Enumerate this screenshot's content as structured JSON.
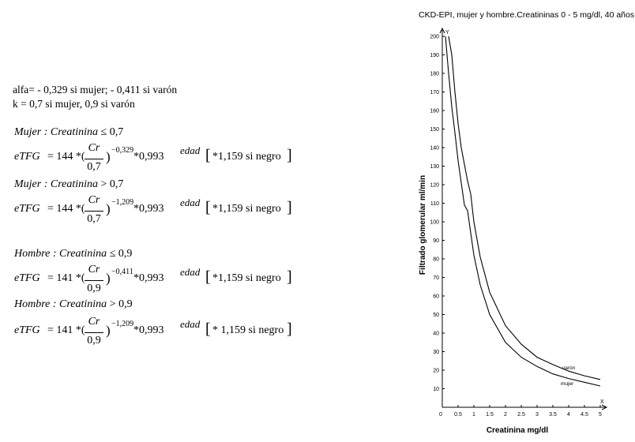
{
  "definitions": {
    "alfa": "alfa= - 0,329 si mujer; - 0,411 si varón",
    "k": "k = 0,7 si mujer, 0,9 si varón"
  },
  "formulas": [
    {
      "condition_label": "Mujer : Creatinina ",
      "condition_op": "≤ 0,7",
      "lhs": "eTFG",
      "eq_prefix": "= 144 *(",
      "numerator": "Cr",
      "denominator": "0,7",
      "close": ")",
      "exponent": "−0,329",
      "factor": "*0,993",
      "age_exp": "edad",
      "bracket_open": "[",
      "race_term": "*1,159  si negro",
      "bracket_close": "]"
    },
    {
      "condition_label": "Mujer : Creatinina ",
      "condition_op": "> 0,7",
      "lhs": "eTFG",
      "eq_prefix": "= 144 *(",
      "numerator": "Cr",
      "denominator": "0,7",
      "close": ")",
      "exponent": "−1,209",
      "factor": "*0,993",
      "age_exp": "edad",
      "bracket_open": "[",
      "race_term": "*1,159  si negro",
      "bracket_close": "]"
    },
    {
      "condition_label": "Hombre : Creatinina ",
      "condition_op": "≤ 0,9",
      "lhs": "eTFG",
      "eq_prefix": "= 141 *(",
      "numerator": "Cr",
      "denominator": "0,9",
      "close": ")",
      "exponent": "−0,411",
      "factor": "*0,993",
      "age_exp": "edad",
      "bracket_open": "[",
      "race_term": "*1,159  si negro",
      "bracket_close": "]"
    },
    {
      "condition_label": "Hombre : Creatinina ",
      "condition_op": "> 0,9",
      "lhs": "eTFG",
      "eq_prefix": "= 141 *(",
      "numerator": "Cr",
      "denominator": "0,9",
      "close": ")",
      "exponent": "−1,209",
      "factor": "*0,993",
      "age_exp": "edad",
      "bracket_open": "[",
      "race_term": "* 1,159  si negro",
      "bracket_close": "]"
    }
  ],
  "chart_data": {
    "type": "line",
    "title": "CKD-EPI, mujer y hombre.Creatininas 0 - 5 mg/dl, 40 años",
    "xlabel": "Creatinina mg/dl",
    "ylabel": "Filtrado glomerular ml/min",
    "x_axis_letter": "X",
    "y_axis_letter": "Y",
    "origin_label": "0",
    "xlim": [
      0,
      5
    ],
    "ylim": [
      0,
      200
    ],
    "x_ticks": [
      0.5,
      1,
      1.5,
      2,
      2.5,
      3,
      3.5,
      4,
      4.5,
      5
    ],
    "x_tick_labels": [
      "0.5",
      "1",
      "1.5",
      "2",
      "2.5",
      "3",
      "3.5",
      "4",
      "4.5",
      "5"
    ],
    "y_ticks": [
      10,
      20,
      30,
      40,
      50,
      60,
      70,
      80,
      90,
      100,
      110,
      120,
      130,
      140,
      150,
      160,
      170,
      180,
      190,
      200
    ],
    "y_tick_labels": [
      "10",
      "20",
      "30",
      "40",
      "50",
      "60",
      "70",
      "80",
      "90",
      "100",
      "110",
      "120",
      "130",
      "140",
      "150",
      "160",
      "170",
      "180",
      "190",
      "200"
    ],
    "grid": false,
    "legend": "inline labels near curve ends",
    "series": [
      {
        "name": "varón",
        "points": [
          [
            0.2,
            200
          ],
          [
            0.3,
            190
          ],
          [
            0.4,
            170
          ],
          [
            0.5,
            153
          ],
          [
            0.6,
            140
          ],
          [
            0.7,
            131
          ],
          [
            0.8,
            122
          ],
          [
            0.9,
            115
          ],
          [
            1.0,
            100
          ],
          [
            1.2,
            81
          ],
          [
            1.5,
            62
          ],
          [
            2.0,
            44
          ],
          [
            2.5,
            34
          ],
          [
            3.0,
            27
          ],
          [
            3.5,
            23
          ],
          [
            4.0,
            19.5
          ],
          [
            4.5,
            17
          ],
          [
            5.0,
            15
          ]
        ]
      },
      {
        "name": "mujer",
        "points": [
          [
            0.1,
            200
          ],
          [
            0.2,
            180
          ],
          [
            0.3,
            162
          ],
          [
            0.4,
            148
          ],
          [
            0.5,
            133
          ],
          [
            0.6,
            121
          ],
          [
            0.7,
            109
          ],
          [
            0.8,
            106
          ],
          [
            1.0,
            82
          ],
          [
            1.2,
            66
          ],
          [
            1.5,
            50
          ],
          [
            2.0,
            35
          ],
          [
            2.5,
            27
          ],
          [
            3.0,
            22
          ],
          [
            3.5,
            18
          ],
          [
            4.0,
            15.5
          ],
          [
            4.5,
            13.5
          ],
          [
            5.0,
            11.5
          ]
        ]
      }
    ]
  }
}
